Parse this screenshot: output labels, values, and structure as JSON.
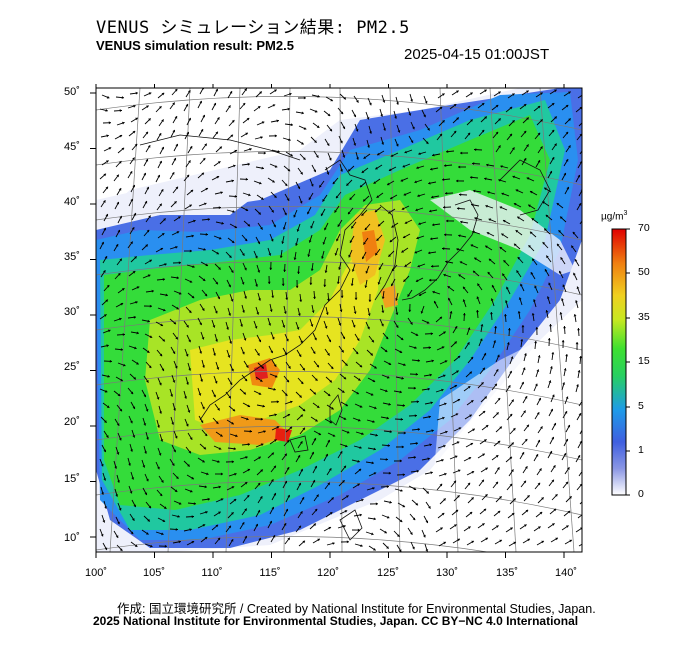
{
  "title_jp": "VENUS シミュレーション結果: PM2.5",
  "title_en": "VENUS simulation result: PM2.5",
  "timestamp": "2025-04-15 01:00JST",
  "colorbar": {
    "unit_base": "µg/m",
    "unit_exp": "3",
    "ticks": [
      "70",
      "50",
      "35",
      "15",
      "5",
      "1",
      "0"
    ]
  },
  "lat_labels": [
    "50˚",
    "45˚",
    "40˚",
    "35˚",
    "30˚",
    "25˚",
    "20˚",
    "15˚",
    "10˚"
  ],
  "lon_labels": [
    "100˚",
    "105˚",
    "110˚",
    "115˚",
    "120˚",
    "125˚",
    "130˚",
    "135˚",
    "140˚"
  ],
  "credit_line1": "作成: 国立環境研究所 / Created by National Institute for Environmental Studies, Japan.",
  "credit_line2": "2025 National Institute for Environmental Studies, Japan. CC BY−NC 4.0 International",
  "colors": {
    "c0": "#f0f0fa",
    "c1": "#7888e0",
    "c5": "#2a7ff0",
    "c15": "#2ee038",
    "c35": "#e8e820",
    "c50": "#f08a10",
    "c70": "#e01010"
  }
}
